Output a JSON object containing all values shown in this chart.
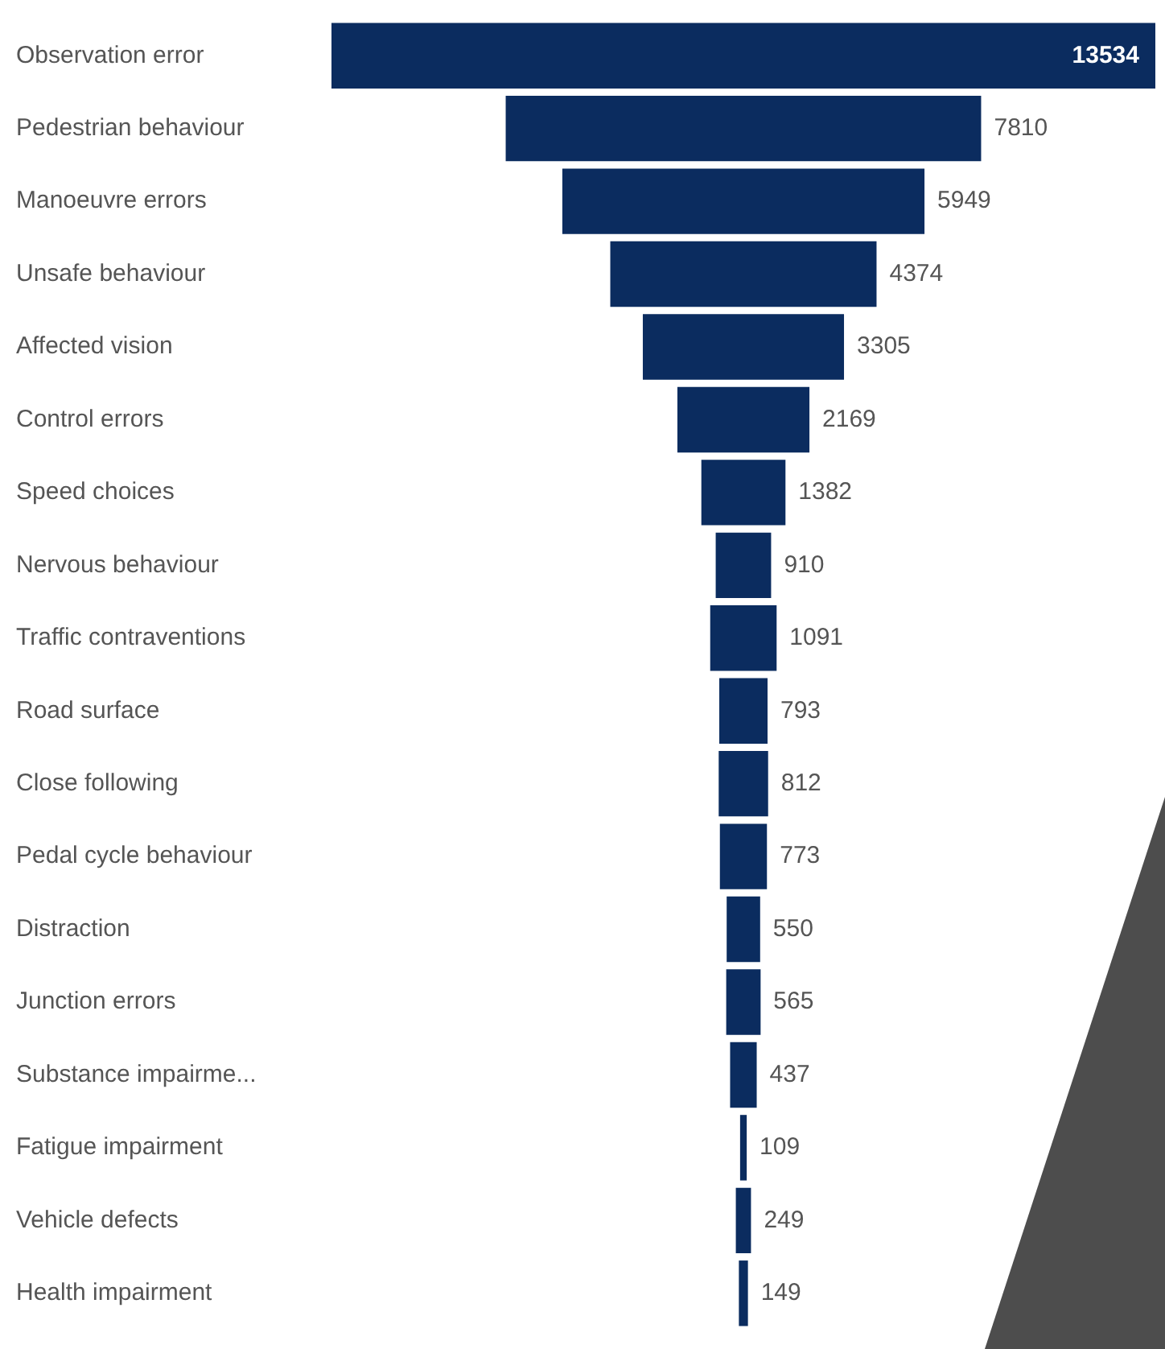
{
  "chart_data": {
    "type": "other",
    "categories": [
      "Observation error",
      "Pedestrian behaviour",
      "Manoeuvre errors",
      "Unsafe behaviour",
      "Affected vision",
      "Control errors",
      "Speed choices",
      "Nervous behaviour",
      "Traffic contraventions",
      "Road surface",
      "Close following",
      "Pedal cycle behaviour",
      "Distraction",
      "Junction errors",
      "Substance impairme...",
      "Fatigue impairment",
      "Vehicle defects",
      "Health impairment"
    ],
    "values": [
      13534,
      7810,
      5949,
      4374,
      3305,
      2169,
      1382,
      910,
      1091,
      793,
      812,
      773,
      550,
      565,
      437,
      109,
      249,
      149
    ],
    "color": "#0b2c5f",
    "data_labels": true
  }
}
